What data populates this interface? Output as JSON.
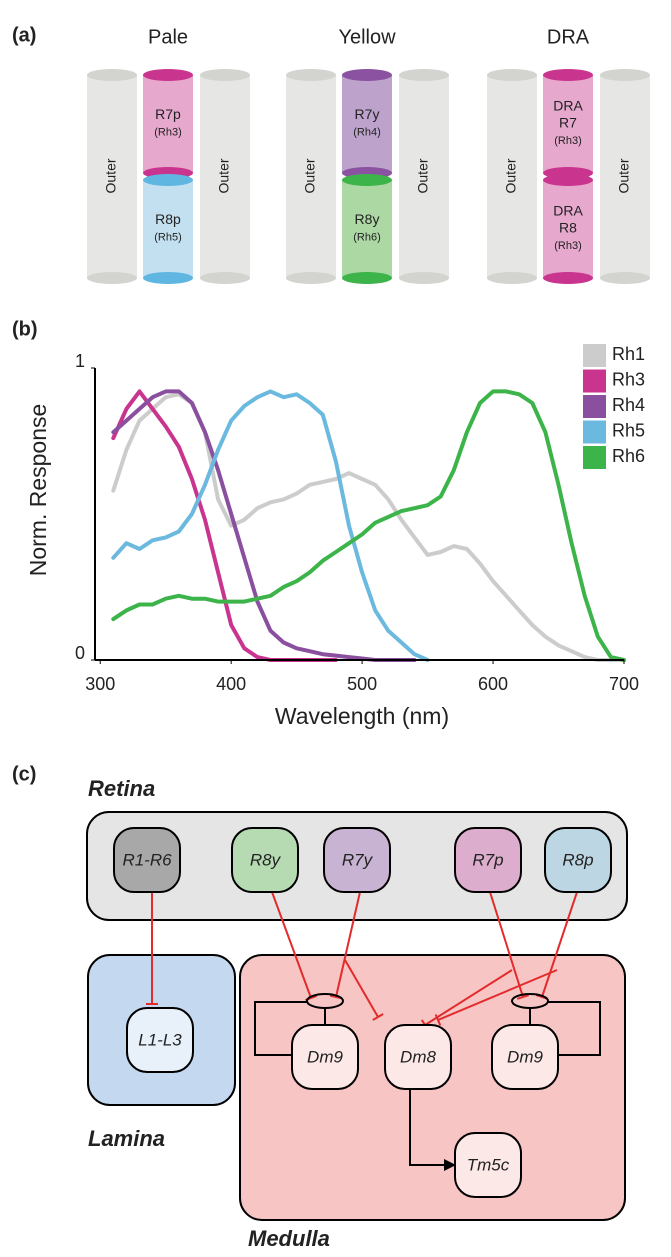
{
  "panel_a": {
    "label": "(a)",
    "groups": [
      {
        "title": "Pale",
        "outer": "Outer",
        "r7": [
          "R7p",
          "(Rh3)"
        ],
        "r8": [
          "R8p",
          "(Rh5)"
        ]
      },
      {
        "title": "Yellow",
        "outer": "Outer",
        "r7": [
          "R7y",
          "(Rh4)"
        ],
        "r8": [
          "R8y",
          "(Rh6)"
        ]
      },
      {
        "title": "DRA",
        "outer": "Outer",
        "r7": [
          "DRA",
          "R7",
          "(Rh3)"
        ],
        "r8": [
          "DRA",
          "R8",
          "(Rh3)"
        ]
      }
    ]
  },
  "chart_data": {
    "type": "line",
    "label": "(b)",
    "x_label": "Wavelength (nm)",
    "y_label": "Norm. Response",
    "x": [
      310,
      320,
      330,
      340,
      350,
      360,
      370,
      380,
      390,
      400,
      410,
      420,
      430,
      440,
      450,
      460,
      470,
      480,
      490,
      500,
      510,
      520,
      530,
      540,
      550,
      560,
      570,
      580,
      590,
      600,
      610,
      620,
      630,
      640,
      650,
      660,
      670,
      680,
      690,
      700
    ],
    "xlim": [
      296,
      700
    ],
    "xticks": [
      300,
      400,
      500,
      600,
      700
    ],
    "ylim": [
      0,
      1
    ],
    "yticks": [
      0,
      1
    ],
    "legend": "upper right",
    "series": [
      {
        "name": "Rh1",
        "color": "#cccccc",
        "values": [
          0.58,
          0.72,
          0.82,
          0.86,
          0.9,
          0.91,
          0.88,
          0.78,
          0.55,
          0.46,
          0.48,
          0.52,
          0.54,
          0.55,
          0.57,
          0.6,
          0.61,
          0.62,
          0.64,
          0.62,
          0.6,
          0.55,
          0.48,
          0.42,
          0.36,
          0.37,
          0.39,
          0.38,
          0.33,
          0.27,
          0.22,
          0.17,
          0.12,
          0.08,
          0.05,
          0.03,
          0.01,
          0,
          0,
          0
        ]
      },
      {
        "name": "Rh3",
        "color": "#c9348f",
        "values": [
          0.76,
          0.86,
          0.92,
          0.86,
          0.8,
          0.73,
          0.62,
          0.48,
          0.3,
          0.12,
          0.04,
          0.01,
          0,
          0,
          0,
          0,
          0,
          0,
          null,
          null,
          null,
          null,
          null,
          null,
          null,
          null,
          null,
          null,
          null,
          null,
          null,
          null,
          null,
          null,
          null,
          null,
          null,
          null,
          null,
          null
        ]
      },
      {
        "name": "Rh4",
        "color": "#8a4f9e",
        "values": [
          0.78,
          0.82,
          0.86,
          0.9,
          0.92,
          0.92,
          0.88,
          0.78,
          0.65,
          0.5,
          0.35,
          0.2,
          0.1,
          0.06,
          0.04,
          0.03,
          0.02,
          0.015,
          0.01,
          0.005,
          0,
          0,
          0,
          0,
          null,
          null,
          null,
          null,
          null,
          null,
          null,
          null,
          null,
          null,
          null,
          null,
          null,
          null,
          null,
          null
        ]
      },
      {
        "name": "Rh5",
        "color": "#6bb9df",
        "values": [
          0.35,
          0.4,
          0.38,
          0.41,
          0.42,
          0.44,
          0.5,
          0.6,
          0.72,
          0.82,
          0.87,
          0.9,
          0.92,
          0.9,
          0.91,
          0.88,
          0.84,
          0.68,
          0.46,
          0.3,
          0.17,
          0.1,
          0.06,
          0.02,
          0,
          null,
          null,
          null,
          null,
          null,
          null,
          null,
          null,
          null,
          null,
          null,
          null,
          null,
          null,
          null
        ]
      },
      {
        "name": "Rh6",
        "color": "#3cb44a",
        "values": [
          0.14,
          0.17,
          0.19,
          0.19,
          0.21,
          0.22,
          0.21,
          0.21,
          0.2,
          0.2,
          0.2,
          0.21,
          0.22,
          0.25,
          0.27,
          0.3,
          0.34,
          0.37,
          0.4,
          0.43,
          0.47,
          0.49,
          0.51,
          0.52,
          0.53,
          0.56,
          0.65,
          0.78,
          0.88,
          0.92,
          0.92,
          0.91,
          0.88,
          0.78,
          0.6,
          0.4,
          0.22,
          0.08,
          0.01,
          0
        ]
      }
    ]
  },
  "panel_c": {
    "label": "(c)",
    "regions": {
      "retina": "Retina",
      "lamina": "Lamina",
      "medulla": "Medulla"
    },
    "nodes": [
      "R1-R6",
      "R8y",
      "R7y",
      "R7p",
      "R8p",
      "L1-L3",
      "Dm9",
      "Dm8",
      "Dm9",
      "Tm5c"
    ]
  }
}
